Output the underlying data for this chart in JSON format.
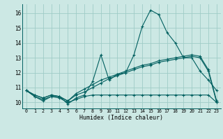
{
  "xlabel": "Humidex (Indice chaleur)",
  "xlim": [
    -0.5,
    23.5
  ],
  "ylim": [
    9.6,
    16.6
  ],
  "yticks": [
    10,
    11,
    12,
    13,
    14,
    15,
    16
  ],
  "xticks": [
    0,
    1,
    2,
    3,
    4,
    5,
    6,
    7,
    8,
    9,
    10,
    11,
    12,
    13,
    14,
    15,
    16,
    17,
    18,
    19,
    20,
    21,
    22,
    23
  ],
  "bg_color": "#cce8e4",
  "grid_color": "#9fccc7",
  "line_color": "#005f5f",
  "line1_x": [
    0,
    1,
    2,
    3,
    4,
    5,
    6,
    7,
    8,
    9,
    10,
    11,
    12,
    13,
    14,
    15,
    16,
    17,
    18,
    19,
    20,
    21,
    22,
    23
  ],
  "line1_y": [
    10.8,
    10.4,
    10.1,
    10.4,
    10.4,
    9.9,
    10.3,
    10.5,
    11.4,
    13.2,
    11.5,
    11.9,
    12.0,
    13.2,
    15.1,
    16.2,
    15.9,
    14.7,
    14.0,
    13.0,
    13.0,
    12.1,
    11.5,
    10.8
  ],
  "line2_x": [
    0,
    1,
    2,
    3,
    4,
    5,
    6,
    7,
    8,
    9,
    10,
    11,
    12,
    13,
    14,
    15,
    16,
    17,
    18,
    19,
    20,
    21,
    22,
    23
  ],
  "line2_y": [
    10.8,
    10.4,
    10.2,
    10.4,
    10.3,
    10.0,
    10.2,
    10.4,
    10.5,
    10.5,
    10.5,
    10.5,
    10.5,
    10.5,
    10.5,
    10.5,
    10.5,
    10.5,
    10.5,
    10.5,
    10.5,
    10.5,
    10.5,
    10.0
  ],
  "line3_x": [
    0,
    1,
    2,
    3,
    4,
    5,
    6,
    7,
    8,
    9,
    10,
    11,
    12,
    13,
    14,
    15,
    16,
    17,
    18,
    19,
    20,
    21,
    22,
    23
  ],
  "line3_y": [
    10.8,
    10.5,
    10.3,
    10.5,
    10.4,
    10.1,
    10.5,
    10.7,
    11.0,
    11.3,
    11.6,
    11.8,
    12.0,
    12.2,
    12.4,
    12.5,
    12.7,
    12.8,
    12.9,
    13.0,
    13.1,
    13.0,
    12.1,
    10.0
  ],
  "line4_x": [
    0,
    1,
    2,
    3,
    4,
    5,
    6,
    7,
    8,
    9,
    10,
    11,
    12,
    13,
    14,
    15,
    16,
    17,
    18,
    19,
    20,
    21,
    22,
    23
  ],
  "line4_y": [
    10.8,
    10.5,
    10.3,
    10.5,
    10.4,
    10.1,
    10.6,
    10.9,
    11.2,
    11.5,
    11.7,
    11.9,
    12.1,
    12.3,
    12.5,
    12.6,
    12.8,
    12.9,
    13.0,
    13.1,
    13.2,
    13.1,
    12.2,
    10.1
  ]
}
